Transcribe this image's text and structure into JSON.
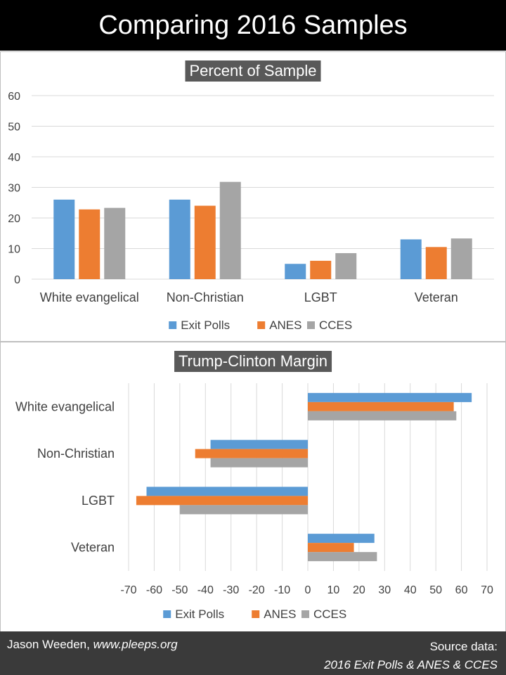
{
  "page": {
    "title": "Comparing 2016 Samples",
    "footer_author": "Jason Weeden,",
    "footer_site": "www.pleeps.org",
    "footer_source_label": "Source data:",
    "footer_source": "2016 Exit Polls & ANES & CCES"
  },
  "colors": {
    "Exit Polls": "#5b9bd5",
    "ANES": "#ed7d31",
    "CCES": "#a5a5a5"
  },
  "chart_data": [
    {
      "type": "bar",
      "title": "Percent of Sample",
      "categories": [
        "White evangelical",
        "Non-Christian",
        "LGBT",
        "Veteran"
      ],
      "series": [
        {
          "name": "Exit Polls",
          "values": [
            26,
            26,
            5,
            13
          ]
        },
        {
          "name": "ANES",
          "values": [
            22.8,
            24,
            6,
            10.5
          ]
        },
        {
          "name": "CCES",
          "values": [
            23.3,
            31.8,
            8.5,
            13.3
          ]
        }
      ],
      "ylim": [
        0,
        60
      ],
      "yticks": [
        0,
        10,
        20,
        30,
        40,
        50,
        60
      ],
      "grid": true,
      "legend": "bottom"
    },
    {
      "type": "bar",
      "orientation": "horizontal",
      "title": "Trump-Clinton Margin",
      "categories": [
        "White evangelical",
        "Non-Christian",
        "LGBT",
        "Veteran"
      ],
      "series": [
        {
          "name": "Exit Polls",
          "values": [
            64,
            -38,
            -63,
            26
          ]
        },
        {
          "name": "ANES",
          "values": [
            57,
            -44,
            -67,
            18
          ]
        },
        {
          "name": "CCES",
          "values": [
            58,
            -38,
            -50,
            27
          ]
        }
      ],
      "xlim": [
        -70,
        70
      ],
      "xticks": [
        -70,
        -60,
        -50,
        -40,
        -30,
        -20,
        -10,
        0,
        10,
        20,
        30,
        40,
        50,
        60,
        70
      ],
      "grid": true,
      "legend": "bottom"
    }
  ]
}
